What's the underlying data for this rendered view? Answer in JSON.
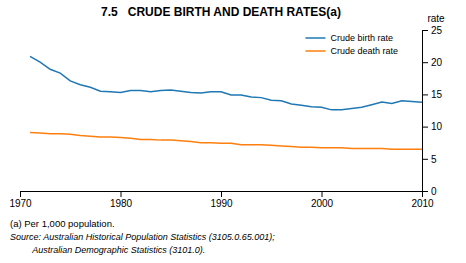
{
  "chart_data": {
    "type": "line",
    "title": "7.5   CRUDE BIRTH AND DEATH RATES(a)",
    "ylabel": "rate",
    "annotations": [
      "(a) Per 1,000 population.",
      "Source: Australian Historical Population Statistics (3105.0.65.001);",
      "         Australian Demographic Statistics (3101.0)."
    ],
    "x": [
      1971,
      1972,
      1973,
      1974,
      1975,
      1976,
      1977,
      1978,
      1979,
      1980,
      1981,
      1982,
      1983,
      1984,
      1985,
      1986,
      1987,
      1988,
      1989,
      1990,
      1991,
      1992,
      1993,
      1994,
      1995,
      1996,
      1997,
      1998,
      1999,
      2000,
      2001,
      2002,
      2003,
      2004,
      2005,
      2006,
      2007,
      2008,
      2009,
      2010
    ],
    "series": [
      {
        "name": "Crude birth rate",
        "values": [
          20.9,
          20.0,
          18.9,
          18.3,
          17.1,
          16.5,
          16.1,
          15.5,
          15.4,
          15.3,
          15.6,
          15.6,
          15.4,
          15.6,
          15.7,
          15.5,
          15.3,
          15.2,
          15.4,
          15.4,
          14.9,
          14.9,
          14.6,
          14.5,
          14.1,
          14.0,
          13.5,
          13.3,
          13.1,
          13.0,
          12.6,
          12.6,
          12.8,
          13.0,
          13.4,
          13.8,
          13.6,
          14.0,
          13.9,
          13.8
        ]
      },
      {
        "name": "Crude death rate",
        "values": [
          9.1,
          9.0,
          8.9,
          8.9,
          8.8,
          8.6,
          8.5,
          8.4,
          8.4,
          8.3,
          8.2,
          8.0,
          8.0,
          7.9,
          7.9,
          7.8,
          7.7,
          7.5,
          7.5,
          7.4,
          7.4,
          7.2,
          7.2,
          7.2,
          7.1,
          7.0,
          6.9,
          6.8,
          6.8,
          6.7,
          6.7,
          6.7,
          6.6,
          6.6,
          6.6,
          6.6,
          6.5,
          6.5,
          6.5,
          6.5
        ]
      }
    ],
    "xlim": [
      1970,
      2010
    ],
    "xticks": [
      1970,
      1980,
      1990,
      2000,
      2010
    ],
    "ylim": [
      0,
      25
    ],
    "yticks": [
      0,
      5,
      10,
      15,
      20,
      25
    ],
    "grid": false,
    "legend": "upper right"
  }
}
